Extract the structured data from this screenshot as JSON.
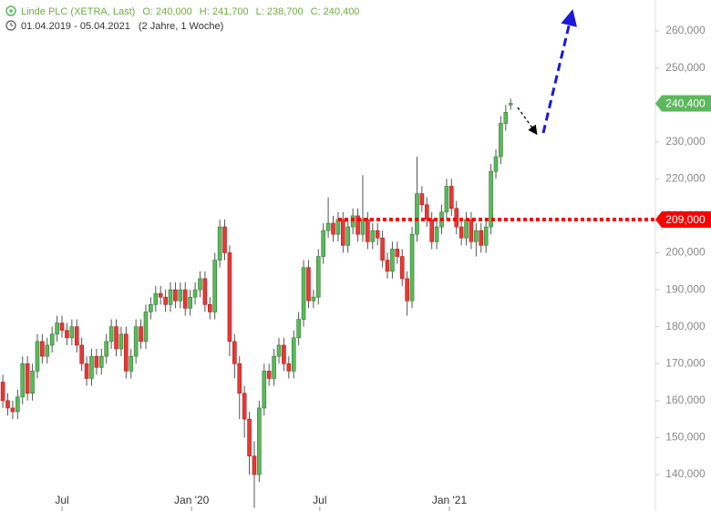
{
  "chart_data": {
    "type": "candlestick",
    "instrument": "Linde PLC (XETRA, Last)",
    "quote": [
      "O: 240,000",
      "H: 241,700",
      "L: 238,700",
      "C: 240,400"
    ],
    "period": "01.04.2019 - 05.04.2021",
    "period_note": "(2 Jahre, 1 Woche)",
    "up_color": "#5cb85c",
    "down_color": "#e53935",
    "open": [
      163000,
      165000,
      160000,
      158000,
      157000,
      161000,
      170000,
      162000,
      168000,
      176000,
      172000,
      175000,
      178000,
      181000,
      179000,
      177000,
      180000,
      175000,
      170000,
      166000,
      172000,
      169000,
      172000,
      176000,
      180000,
      174000,
      178000,
      168000,
      172000,
      180000,
      176000,
      184000,
      186000,
      189000,
      188000,
      186000,
      190000,
      187000,
      190000,
      185000,
      188000,
      190000,
      193000,
      186000,
      184000,
      198000,
      207000,
      200000,
      176000,
      170000,
      162000,
      155000,
      145000,
      140000,
      158000,
      168000,
      166000,
      172000,
      175000,
      170000,
      168000,
      177000,
      182000,
      196000,
      187000,
      188000,
      199000,
      206000,
      208000,
      205000,
      209000,
      202000,
      207000,
      210000,
      205000,
      209000,
      203000,
      206000,
      204000,
      198000,
      195000,
      201000,
      199000,
      193000,
      187000,
      205000,
      216000,
      213000,
      209000,
      203000,
      207000,
      211000,
      218000,
      212000,
      207000,
      204000,
      209000,
      203000,
      206000,
      202000,
      207000,
      222000,
      226000,
      235000,
      240000
    ],
    "high": [
      167000,
      167000,
      162000,
      160000,
      163000,
      172000,
      172000,
      170000,
      178000,
      178000,
      177000,
      180000,
      183000,
      183000,
      181000,
      182000,
      182000,
      177000,
      172000,
      174000,
      174000,
      174000,
      178000,
      182000,
      182000,
      180000,
      180000,
      174000,
      182000,
      182000,
      186000,
      188000,
      191000,
      191000,
      190000,
      192000,
      192000,
      192000,
      192000,
      190000,
      192000,
      195000,
      195000,
      188000,
      200000,
      209000,
      209000,
      202000,
      178000,
      172000,
      164000,
      157000,
      149000,
      160000,
      170000,
      170000,
      174000,
      177000,
      177000,
      172000,
      179000,
      184000,
      198000,
      198000,
      190000,
      201000,
      208000,
      215000,
      210000,
      211000,
      211000,
      209000,
      212000,
      212000,
      221000,
      211000,
      208000,
      208000,
      206000,
      200000,
      203000,
      203000,
      201000,
      195000,
      207000,
      226000,
      218000,
      215000,
      211000,
      209000,
      213000,
      220000,
      220000,
      214000,
      209000,
      211000,
      211000,
      208000,
      208000,
      209000,
      224000,
      228000,
      237000,
      240000,
      241700
    ],
    "low": [
      161000,
      158000,
      156000,
      155000,
      155000,
      159000,
      160000,
      160000,
      166000,
      170000,
      170000,
      173000,
      176000,
      177000,
      175000,
      175000,
      173000,
      168000,
      164000,
      164000,
      167000,
      167000,
      170000,
      174000,
      172000,
      172000,
      166000,
      166000,
      170000,
      174000,
      174000,
      182000,
      184000,
      186000,
      184000,
      184000,
      185000,
      185000,
      183000,
      183000,
      186000,
      188000,
      184000,
      182000,
      182000,
      196000,
      198000,
      172000,
      166000,
      155000,
      150000,
      140000,
      131000,
      138000,
      156000,
      164000,
      164000,
      170000,
      168000,
      166000,
      166000,
      175000,
      180000,
      185000,
      185000,
      186000,
      197000,
      204000,
      203000,
      203000,
      200000,
      200000,
      205000,
      203000,
      203000,
      201000,
      201000,
      202000,
      196000,
      193000,
      193000,
      197000,
      191000,
      183000,
      185000,
      203000,
      211000,
      207000,
      201000,
      201000,
      205000,
      209000,
      210000,
      205000,
      202000,
      202000,
      201000,
      199000,
      200000,
      200000,
      205000,
      220000,
      224000,
      233000,
      238700
    ],
    "close": [
      165000,
      160000,
      158000,
      157000,
      161000,
      170000,
      162000,
      168000,
      176000,
      172000,
      175000,
      178000,
      181000,
      179000,
      177000,
      180000,
      175000,
      170000,
      166000,
      172000,
      169000,
      172000,
      176000,
      180000,
      174000,
      178000,
      168000,
      172000,
      180000,
      176000,
      184000,
      186000,
      189000,
      188000,
      186000,
      190000,
      187000,
      190000,
      185000,
      188000,
      190000,
      193000,
      186000,
      184000,
      198000,
      207000,
      200000,
      176000,
      170000,
      162000,
      155000,
      145000,
      140000,
      158000,
      168000,
      166000,
      172000,
      175000,
      170000,
      168000,
      177000,
      182000,
      196000,
      187000,
      188000,
      199000,
      206000,
      208000,
      205000,
      209000,
      202000,
      207000,
      210000,
      205000,
      209000,
      203000,
      206000,
      204000,
      198000,
      195000,
      201000,
      199000,
      193000,
      187000,
      205000,
      216000,
      213000,
      209000,
      203000,
      207000,
      211000,
      218000,
      212000,
      207000,
      204000,
      209000,
      203000,
      206000,
      202000,
      207000,
      222000,
      226000,
      235000,
      238000,
      240400
    ],
    "ylim": [
      130000,
      268000
    ],
    "yticks": [
      {
        "value": 140000,
        "label": "140,000"
      },
      {
        "value": 150000,
        "label": "150,000"
      },
      {
        "value": 160000,
        "label": "160,000"
      },
      {
        "value": 170000,
        "label": "170,000"
      },
      {
        "value": 180000,
        "label": "180,000"
      },
      {
        "value": 190000,
        "label": "190,000"
      },
      {
        "value": 200000,
        "label": "200,000"
      },
      {
        "value": 210000,
        "label": "210,000"
      },
      {
        "value": 220000,
        "label": "220,000"
      },
      {
        "value": 230000,
        "label": "230,000"
      },
      {
        "value": 240000,
        "label": "240,000"
      },
      {
        "value": 250000,
        "label": "250,000"
      },
      {
        "value": 260000,
        "label": "260,000"
      }
    ],
    "xticks": [
      {
        "value": "2019-07-01",
        "label": "Jul"
      },
      {
        "value": "2020-01-01",
        "label": "Jan '20"
      },
      {
        "value": "2020-07-01",
        "label": "Jul"
      },
      {
        "value": "2021-01-01",
        "label": "Jan '21"
      }
    ],
    "last_price": {
      "value": 240400,
      "label": "240,400",
      "color": "#5cb85c"
    },
    "level": {
      "value": 209000,
      "label": "209,000",
      "color": "#ff0000"
    }
  }
}
